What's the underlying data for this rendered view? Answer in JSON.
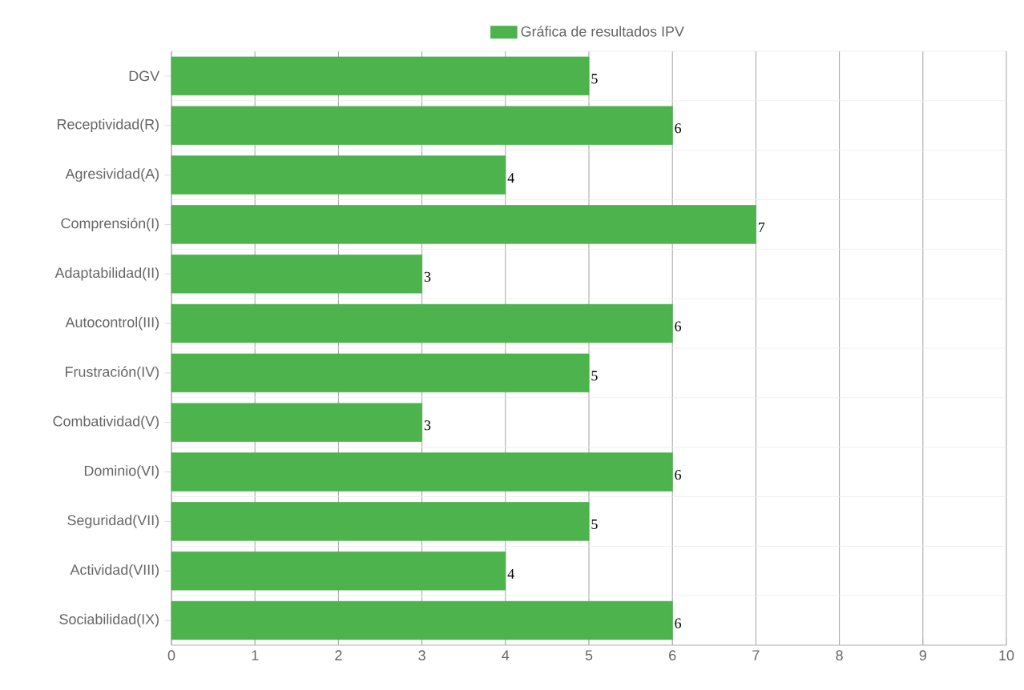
{
  "chart_data": {
    "type": "bar",
    "orientation": "horizontal",
    "categories": [
      "DGV",
      "Receptividad(R)",
      "Agresividad(A)",
      "Comprensión(I)",
      "Adaptabilidad(II)",
      "Autocontrol(III)",
      "Frustración(IV)",
      "Combatividad(V)",
      "Dominio(VI)",
      "Seguridad(VII)",
      "Actividad(VIII)",
      "Sociabilidad(IX)"
    ],
    "series": [
      {
        "name": "Gráfica de resultados IPV",
        "color": "#4db34d",
        "values": [
          5,
          6,
          4,
          7,
          3,
          6,
          5,
          3,
          6,
          5,
          4,
          6
        ]
      }
    ],
    "xlim": [
      0,
      10
    ],
    "xticks": [
      0,
      1,
      2,
      3,
      4,
      5,
      6,
      7,
      8,
      9,
      10
    ],
    "grid": true,
    "legend": "top",
    "data_labels": true
  }
}
